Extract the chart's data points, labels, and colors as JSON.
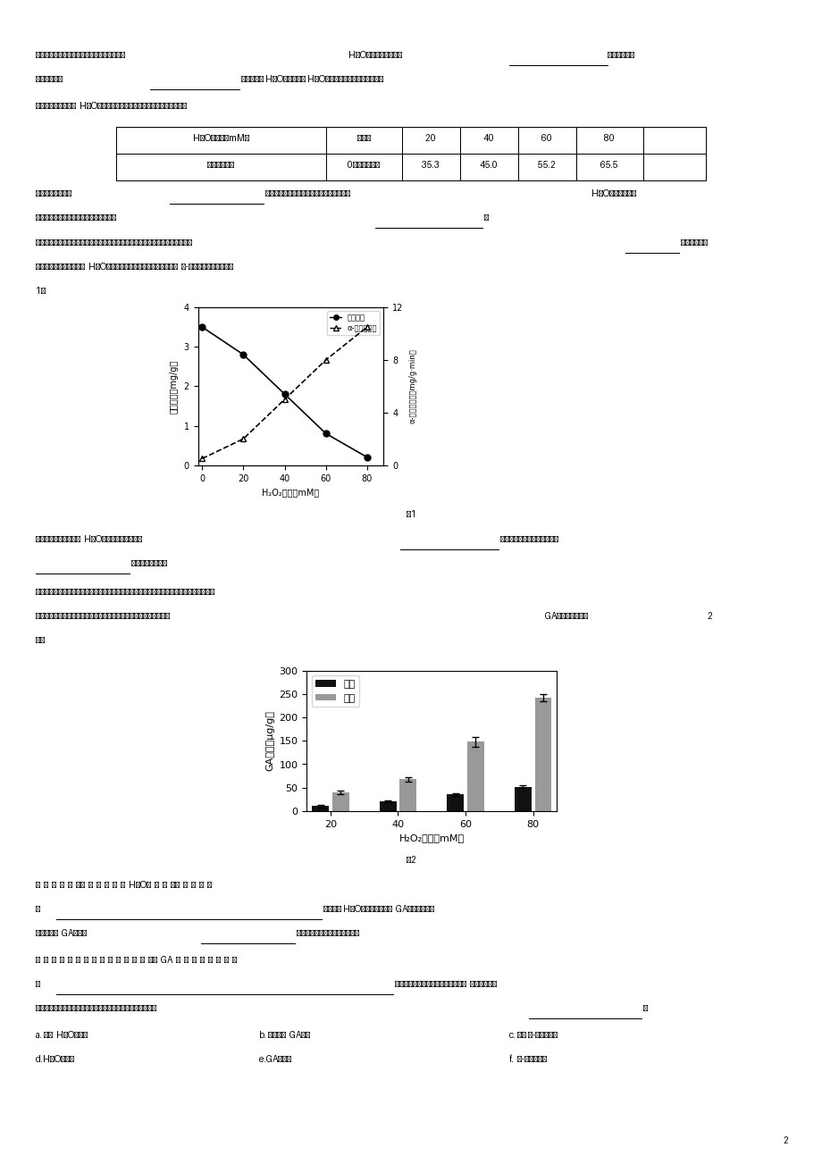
{
  "bg_color": "#ffffff",
  "page_number": "2",
  "fig1": {
    "x": [
      0,
      20,
      40,
      60,
      80
    ],
    "starch": [
      3.5,
      2.8,
      1.8,
      0.8,
      0.2
    ],
    "enzyme": [
      0.5,
      2.0,
      5.0,
      8.0,
      10.5
    ],
    "xlabel": "H₂O₂浓度（mM）",
    "ylabel_left": "淠粉含量（mg/g）",
    "ylabel_right": "α-淠粉酶活性（mg/g·min）",
    "legend1": "淠粉含量",
    "legend2": "α-淠粉酶活性",
    "title": "图1",
    "ylim_left": [
      0,
      4
    ],
    "ylim_right": [
      0,
      12
    ]
  },
  "fig2": {
    "x": [
      20,
      40,
      60,
      80
    ],
    "inner": [
      10,
      20,
      35,
      52
    ],
    "inner_err": [
      2,
      2,
      3,
      3
    ],
    "outer": [
      40,
      68,
      148,
      243
    ],
    "outer_err": [
      4,
      5,
      10,
      8
    ],
    "xlabel": "H₂O₂浓度（mM）",
    "ylabel": "GA含量（μg/g）",
    "legend_inner": "内侧",
    "legend_outer": "外侧",
    "title": "图2",
    "ylim": [
      0,
      300
    ],
    "yticks": [
      0,
      50,
      100,
      150,
      200,
      250,
      300
    ]
  }
}
